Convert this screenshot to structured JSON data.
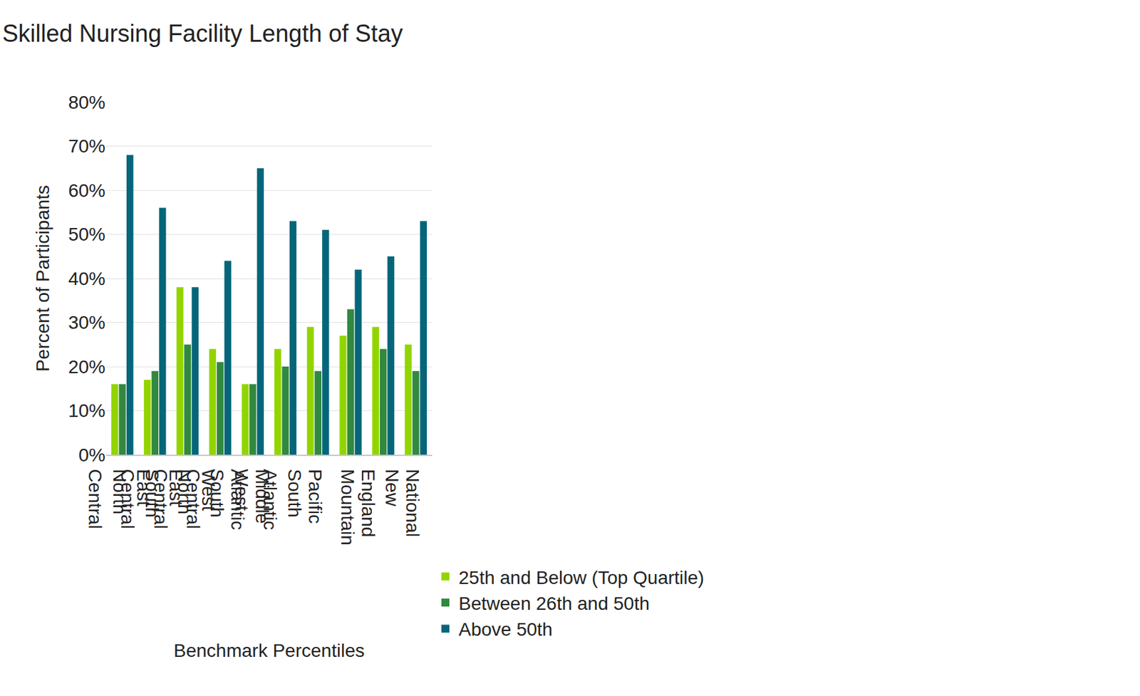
{
  "chart_data": {
    "type": "bar",
    "title": "Skilled Nursing Facility Length of Stay",
    "x_label": "Benchmark Percentiles",
    "y_label": "Percent of Participants",
    "categories": [
      "East North Central",
      "East South Central",
      "West North Central",
      "West South Central",
      "Middle Atlantic",
      "South Atlantic",
      "Pacific",
      "Mountain",
      "New England",
      "National"
    ],
    "series": [
      {
        "name": "25th and Below (Top Quartile)",
        "color": "#92d400",
        "values": [
          16,
          17,
          38,
          24,
          16,
          24,
          29,
          27,
          29,
          25
        ]
      },
      {
        "name": "Between 26th and 50th",
        "color": "#31893f",
        "values": [
          16,
          19,
          25,
          21,
          16,
          20,
          19,
          33,
          24,
          19
        ]
      },
      {
        "name": "Above 50th",
        "color": "#05667a",
        "values": [
          68,
          56,
          38,
          44,
          65,
          53,
          51,
          42,
          45,
          53
        ]
      }
    ],
    "ylim": [
      0,
      80
    ],
    "yticks": [
      {
        "value": 0,
        "label": "0%"
      },
      {
        "value": 10,
        "label": "10%"
      },
      {
        "value": 20,
        "label": "20%"
      },
      {
        "value": 30,
        "label": "30%"
      },
      {
        "value": 40,
        "label": "40%"
      },
      {
        "value": 50,
        "label": "50%"
      },
      {
        "value": 60,
        "label": "60%"
      },
      {
        "value": 70,
        "label": "70%"
      },
      {
        "value": 80,
        "label": "80%"
      }
    ],
    "grid": true,
    "legend": "bottom"
  }
}
